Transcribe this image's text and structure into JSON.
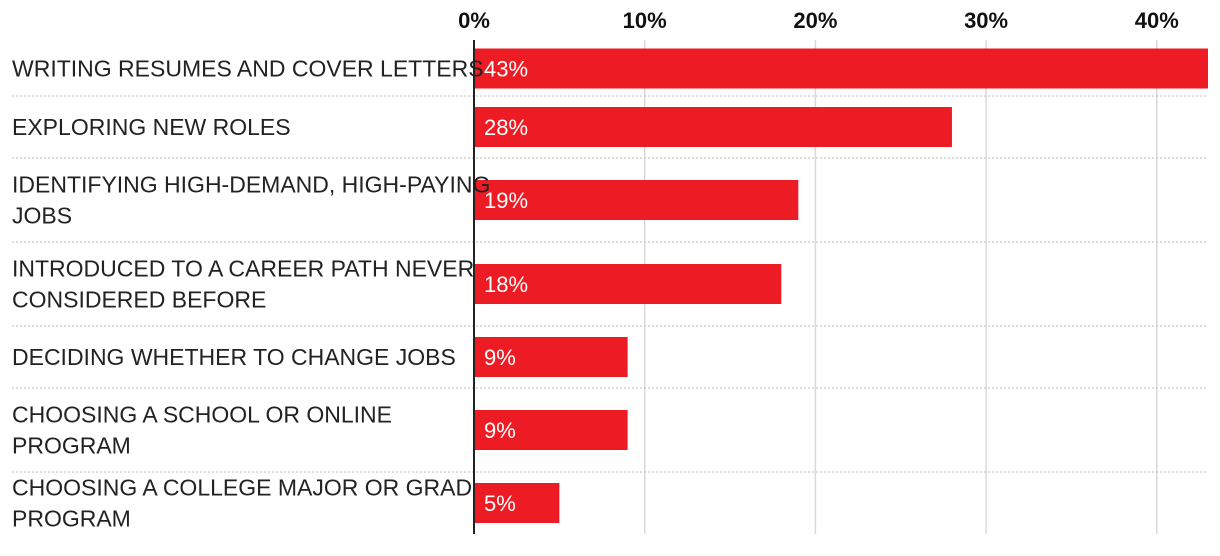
{
  "chart_data": {
    "type": "bar",
    "orientation": "horizontal",
    "categories": [
      "WRITING RESUMES AND COVER LETTERS",
      "EXPLORING NEW ROLES",
      "IDENTIFYING HIGH-DEMAND, HIGH-PAYING JOBS",
      "INTRODUCED TO A CAREER PATH NEVER CONSIDERED BEFORE",
      "DECIDING WHETHER TO CHANGE JOBS",
      "CHOOSING A SCHOOL OR ONLINE PROGRAM",
      "CHOOSING A COLLEGE MAJOR OR GRAD PROGRAM"
    ],
    "category_lines": [
      [
        "WRITING RESUMES AND COVER LETTERS"
      ],
      [
        "EXPLORING NEW ROLES"
      ],
      [
        "IDENTIFYING HIGH-DEMAND, HIGH-PAYING",
        "JOBS"
      ],
      [
        "INTRODUCED TO A CAREER PATH NEVER",
        "CONSIDERED BEFORE"
      ],
      [
        "DECIDING WHETHER TO CHANGE JOBS"
      ],
      [
        "CHOOSING A SCHOOL OR ONLINE",
        "PROGRAM"
      ],
      [
        "CHOOSING A COLLEGE MAJOR OR GRAD",
        "PROGRAM"
      ]
    ],
    "values": [
      43,
      28,
      19,
      18,
      9,
      9,
      5
    ],
    "value_labels": [
      "43%",
      "28%",
      "19%",
      "18%",
      "9%",
      "9%",
      "5%"
    ],
    "x_ticks": [
      0,
      10,
      20,
      30,
      40
    ],
    "x_tick_labels": [
      "0%",
      "10%",
      "20%",
      "30%",
      "40%"
    ],
    "xlim": [
      0,
      43
    ],
    "xlabel": "",
    "ylabel": "",
    "title": "",
    "grid": true,
    "colors": {
      "bar": "#ed1c24",
      "grid": "#d9d9d9",
      "axis": "#222222",
      "separator": "#bbbbbb"
    }
  }
}
